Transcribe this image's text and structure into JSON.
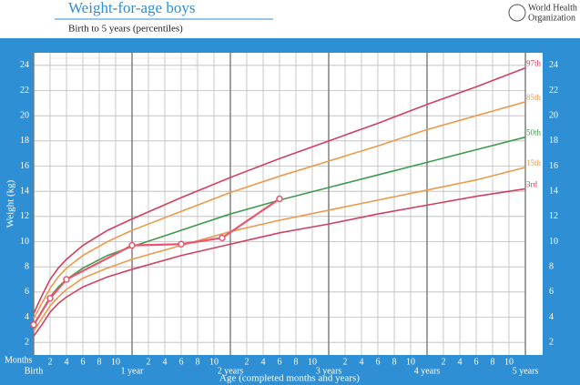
{
  "chart_data": {
    "type": "line",
    "title": "Weight-for-age boys",
    "subtitle": "Birth to 5 years (percentiles)",
    "organization": [
      "World Health",
      "Organization"
    ],
    "y_label": "Weight (kg)",
    "x_label": "Age (completed months and years)",
    "x_unit_label": "Months",
    "xlim": [
      0,
      60
    ],
    "ylim": [
      1,
      25
    ],
    "yticks": [
      2,
      4,
      6,
      8,
      10,
      12,
      14,
      16,
      18,
      20,
      22,
      24
    ],
    "xticks": [
      {
        "value": 2,
        "label": "2"
      },
      {
        "value": 4,
        "label": "4"
      },
      {
        "value": 6,
        "label": "6"
      },
      {
        "value": 8,
        "label": "8"
      },
      {
        "value": 10,
        "label": "10"
      },
      {
        "value": 14,
        "label": "2"
      },
      {
        "value": 16,
        "label": "4"
      },
      {
        "value": 18,
        "label": "6"
      },
      {
        "value": 20,
        "label": "8"
      },
      {
        "value": 22,
        "label": "10"
      },
      {
        "value": 26,
        "label": "2"
      },
      {
        "value": 28,
        "label": "4"
      },
      {
        "value": 30,
        "label": "6"
      },
      {
        "value": 32,
        "label": "8"
      },
      {
        "value": 34,
        "label": "10"
      },
      {
        "value": 38,
        "label": "2"
      },
      {
        "value": 40,
        "label": "4"
      },
      {
        "value": 42,
        "label": "6"
      },
      {
        "value": 44,
        "label": "8"
      },
      {
        "value": 46,
        "label": "10"
      },
      {
        "value": 50,
        "label": "2"
      },
      {
        "value": 52,
        "label": "4"
      },
      {
        "value": 54,
        "label": "6"
      },
      {
        "value": 56,
        "label": "8"
      },
      {
        "value": 58,
        "label": "10"
      }
    ],
    "year_ticks": [
      {
        "value": 0,
        "label": "Birth"
      },
      {
        "value": 12,
        "label": "1 year"
      },
      {
        "value": 24,
        "label": "2 years"
      },
      {
        "value": 36,
        "label": "3 years"
      },
      {
        "value": 48,
        "label": "4 years"
      },
      {
        "value": 60,
        "label": "5 years"
      }
    ],
    "grid": true,
    "x": [
      0,
      1,
      2,
      3,
      4,
      6,
      9,
      12,
      18,
      24,
      30,
      36,
      42,
      48,
      54,
      60
    ],
    "series": [
      {
        "name": "97th",
        "color": "#d0415f",
        "values": [
          4.3,
          5.7,
          7.0,
          7.9,
          8.6,
          9.7,
          10.9,
          11.8,
          13.5,
          15.1,
          16.6,
          18.0,
          19.4,
          20.9,
          22.3,
          23.8
        ]
      },
      {
        "name": "85th",
        "color": "#ec9a4c",
        "values": [
          3.9,
          5.1,
          6.3,
          7.2,
          7.9,
          8.9,
          10.0,
          10.9,
          12.4,
          13.9,
          15.2,
          16.4,
          17.6,
          18.9,
          20.0,
          21.1
        ]
      },
      {
        "name": "50th",
        "color": "#3f9a4e",
        "values": [
          3.3,
          4.5,
          5.6,
          6.4,
          7.0,
          7.9,
          8.9,
          9.6,
          10.9,
          12.2,
          13.3,
          14.3,
          15.3,
          16.3,
          17.3,
          18.3
        ]
      },
      {
        "name": "15th",
        "color": "#ec9a4c",
        "values": [
          2.9,
          3.9,
          4.9,
          5.6,
          6.2,
          7.1,
          7.9,
          8.6,
          9.7,
          10.8,
          11.7,
          12.5,
          13.3,
          14.1,
          14.9,
          15.9
        ]
      },
      {
        "name": "3rd",
        "color": "#d0415f",
        "values": [
          2.5,
          3.4,
          4.4,
          5.1,
          5.6,
          6.4,
          7.2,
          7.8,
          8.9,
          9.8,
          10.7,
          11.4,
          12.2,
          12.9,
          13.6,
          14.2
        ]
      },
      {
        "color": "#ea5570",
        "marker": true,
        "x": [
          0,
          2,
          4,
          12,
          18,
          23,
          30
        ],
        "values": [
          3.4,
          5.5,
          7.0,
          9.7,
          9.8,
          10.3,
          13.4
        ]
      }
    ]
  }
}
